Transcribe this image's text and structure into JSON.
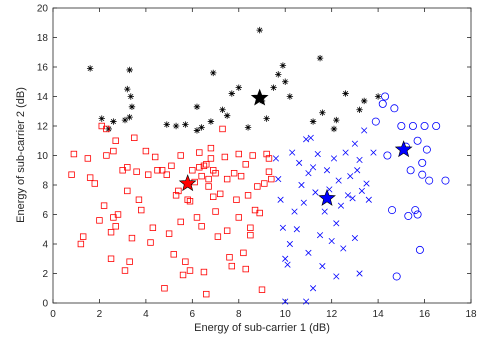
{
  "chart_data": {
    "type": "scatter",
    "title": "",
    "xlabel": "Energy of sub-carrier 1 (dB)",
    "ylabel": "Energy of sub-carrier 2 (dB)",
    "xlim": [
      0,
      18
    ],
    "ylim": [
      0,
      20
    ],
    "xticks": [
      0,
      2,
      4,
      6,
      8,
      10,
      12,
      14,
      16,
      18
    ],
    "yticks": [
      0,
      2,
      4,
      6,
      8,
      10,
      12,
      14,
      16,
      18,
      20
    ],
    "grid": false,
    "legend": "none",
    "series": [
      {
        "marker": "asterisk",
        "color": "#000000",
        "points": [
          [
            1.6,
            15.9
          ],
          [
            2.1,
            12.5
          ],
          [
            2.4,
            11.8
          ],
          [
            2.6,
            12.3
          ],
          [
            3.1,
            12.4
          ],
          [
            3.2,
            14.5
          ],
          [
            3.3,
            15.8
          ],
          [
            3.35,
            14.0
          ],
          [
            3.4,
            13.3
          ],
          [
            3.3,
            12.6
          ],
          [
            4.9,
            12.1
          ],
          [
            5.3,
            12.0
          ],
          [
            5.7,
            12.1
          ],
          [
            6.2,
            11.7
          ],
          [
            6.4,
            11.9
          ],
          [
            6.8,
            12.3
          ],
          [
            6.9,
            15.6
          ],
          [
            6.2,
            13.3
          ],
          [
            7.3,
            13.1
          ],
          [
            7.5,
            12.7
          ],
          [
            7.7,
            14.2
          ],
          [
            8.0,
            14.6
          ],
          [
            8.4,
            11.9
          ],
          [
            8.9,
            18.5
          ],
          [
            9.0,
            13.7
          ],
          [
            9.2,
            12.5
          ],
          [
            9.5,
            14.6
          ],
          [
            9.7,
            15.5
          ],
          [
            9.9,
            16.1
          ],
          [
            10.0,
            15.0
          ],
          [
            10.2,
            14.0
          ],
          [
            11.5,
            16.6
          ],
          [
            11.6,
            12.9
          ],
          [
            12.1,
            11.8
          ],
          [
            12.2,
            12.4
          ],
          [
            12.6,
            14.2
          ],
          [
            13.2,
            13.1
          ],
          [
            13.4,
            13.7
          ],
          [
            14.0,
            14.0
          ],
          [
            11.2,
            12.3
          ]
        ]
      },
      {
        "marker": "square",
        "color": "#ff0000",
        "points": [
          [
            0.8,
            8.7
          ],
          [
            0.9,
            10.1
          ],
          [
            1.2,
            4.0
          ],
          [
            1.3,
            4.5
          ],
          [
            1.5,
            9.8
          ],
          [
            1.6,
            8.5
          ],
          [
            1.8,
            8.1
          ],
          [
            2.0,
            5.6
          ],
          [
            2.1,
            12.0
          ],
          [
            2.2,
            6.6
          ],
          [
            2.3,
            11.8
          ],
          [
            2.3,
            10.0
          ],
          [
            2.5,
            4.8
          ],
          [
            2.5,
            3.0
          ],
          [
            2.6,
            10.3
          ],
          [
            2.7,
            5.2
          ],
          [
            2.7,
            11.0
          ],
          [
            2.8,
            6.0
          ],
          [
            3.0,
            9.0
          ],
          [
            3.1,
            2.2
          ],
          [
            3.2,
            7.6
          ],
          [
            3.2,
            9.2
          ],
          [
            3.3,
            2.8
          ],
          [
            3.5,
            11.2
          ],
          [
            3.6,
            8.9
          ],
          [
            3.7,
            7.0
          ],
          [
            3.8,
            6.3
          ],
          [
            4.0,
            10.3
          ],
          [
            4.1,
            8.7
          ],
          [
            4.3,
            5.1
          ],
          [
            4.4,
            9.9
          ],
          [
            4.5,
            9.0
          ],
          [
            4.7,
            9.0
          ],
          [
            4.8,
            1.0
          ],
          [
            4.9,
            8.7
          ],
          [
            5.0,
            4.7
          ],
          [
            5.1,
            9.3
          ],
          [
            5.2,
            3.3
          ],
          [
            5.3,
            7.3
          ],
          [
            5.4,
            7.6
          ],
          [
            5.5,
            10.0
          ],
          [
            5.6,
            1.9
          ],
          [
            5.7,
            2.8
          ],
          [
            5.8,
            7.0
          ],
          [
            5.9,
            6.9
          ],
          [
            6.0,
            9.0
          ],
          [
            6.1,
            8.2
          ],
          [
            6.2,
            5.8
          ],
          [
            6.3,
            9.2
          ],
          [
            6.4,
            5.2
          ],
          [
            6.4,
            8.6
          ],
          [
            6.5,
            9.3
          ],
          [
            6.5,
            2.1
          ],
          [
            6.6,
            0.6
          ],
          [
            6.7,
            7.9
          ],
          [
            6.7,
            8.4
          ],
          [
            6.8,
            9.8
          ],
          [
            6.8,
            10.5
          ],
          [
            6.9,
            7.2
          ],
          [
            7.0,
            6.2
          ],
          [
            7.0,
            8.8
          ],
          [
            7.1,
            4.5
          ],
          [
            7.2,
            7.4
          ],
          [
            7.3,
            11.8
          ],
          [
            7.4,
            9.9
          ],
          [
            7.5,
            8.4
          ],
          [
            7.5,
            4.9
          ],
          [
            7.6,
            3.1
          ],
          [
            7.7,
            2.5
          ],
          [
            7.8,
            8.8
          ],
          [
            7.9,
            7.0
          ],
          [
            8.0,
            5.8
          ],
          [
            8.0,
            10.1
          ],
          [
            8.1,
            8.6
          ],
          [
            8.2,
            3.4
          ],
          [
            8.3,
            2.3
          ],
          [
            8.3,
            9.4
          ],
          [
            8.4,
            7.3
          ],
          [
            8.5,
            5.1
          ],
          [
            8.5,
            4.6
          ],
          [
            8.6,
            10.0
          ],
          [
            8.7,
            6.3
          ],
          [
            8.8,
            7.9
          ],
          [
            8.9,
            6.1
          ],
          [
            9.0,
            0.9
          ],
          [
            9.1,
            8.1
          ],
          [
            9.2,
            10.1
          ],
          [
            9.3,
            8.9
          ],
          [
            9.4,
            8.4
          ],
          [
            9.3,
            9.8
          ],
          [
            6.6,
            9.4
          ],
          [
            6.9,
            9.0
          ],
          [
            6.3,
            10.2
          ],
          [
            5.5,
            5.5
          ],
          [
            5.9,
            2.2
          ],
          [
            4.2,
            4.1
          ],
          [
            3.4,
            4.4
          ],
          [
            2.6,
            5.8
          ]
        ]
      },
      {
        "marker": "x",
        "color": "#0000ff",
        "points": [
          [
            9.6,
            9.8
          ],
          [
            9.7,
            8.4
          ],
          [
            9.8,
            7.0
          ],
          [
            9.9,
            5.1
          ],
          [
            10.0,
            3.0
          ],
          [
            10.0,
            0.1
          ],
          [
            10.1,
            2.6
          ],
          [
            10.2,
            4.0
          ],
          [
            10.3,
            10.2
          ],
          [
            10.4,
            6.2
          ],
          [
            10.5,
            5.0
          ],
          [
            10.6,
            9.5
          ],
          [
            10.7,
            8.0
          ],
          [
            10.8,
            6.8
          ],
          [
            10.9,
            0.1
          ],
          [
            11.0,
            3.4
          ],
          [
            11.0,
            8.8
          ],
          [
            11.1,
            11.2
          ],
          [
            11.2,
            9.2
          ],
          [
            11.3,
            7.5
          ],
          [
            11.4,
            10.1
          ],
          [
            11.5,
            4.6
          ],
          [
            11.6,
            2.5
          ],
          [
            11.7,
            6.2
          ],
          [
            11.8,
            9.0
          ],
          [
            11.9,
            7.7
          ],
          [
            12.0,
            4.2
          ],
          [
            12.1,
            9.8
          ],
          [
            12.2,
            5.4
          ],
          [
            12.3,
            8.3
          ],
          [
            12.4,
            6.6
          ],
          [
            12.5,
            3.7
          ],
          [
            12.6,
            10.2
          ],
          [
            12.7,
            7.3
          ],
          [
            12.8,
            8.6
          ],
          [
            12.9,
            7.1
          ],
          [
            13.0,
            10.8
          ],
          [
            13.0,
            4.4
          ],
          [
            13.1,
            9.0
          ],
          [
            13.2,
            2.0
          ],
          [
            13.2,
            9.7
          ],
          [
            13.3,
            7.6
          ],
          [
            13.4,
            11.7
          ],
          [
            13.5,
            8.1
          ],
          [
            13.6,
            7.0
          ],
          [
            13.8,
            10.2
          ],
          [
            12.2,
            1.8
          ],
          [
            11.2,
            1.0
          ],
          [
            10.9,
            11.1
          ]
        ]
      },
      {
        "marker": "circle",
        "color": "#0000ff",
        "points": [
          [
            13.9,
            12.3
          ],
          [
            14.2,
            13.5
          ],
          [
            14.3,
            14.0
          ],
          [
            14.4,
            10.0
          ],
          [
            14.6,
            6.3
          ],
          [
            14.7,
            13.2
          ],
          [
            14.8,
            1.8
          ],
          [
            15.0,
            12.0
          ],
          [
            15.2,
            10.6
          ],
          [
            15.3,
            5.9
          ],
          [
            15.4,
            9.0
          ],
          [
            15.5,
            12.0
          ],
          [
            15.6,
            6.3
          ],
          [
            15.7,
            11.0
          ],
          [
            15.8,
            3.6
          ],
          [
            15.9,
            9.5
          ],
          [
            15.9,
            8.7
          ],
          [
            16.0,
            12.0
          ],
          [
            16.1,
            10.4
          ],
          [
            16.2,
            8.3
          ],
          [
            16.5,
            12.0
          ],
          [
            16.9,
            8.3
          ],
          [
            15.7,
            6.0
          ]
        ]
      },
      {
        "marker": "star",
        "color": "#000000",
        "points": [
          [
            8.9,
            13.9
          ]
        ]
      },
      {
        "marker": "star",
        "color": "#ff0000",
        "points": [
          [
            5.8,
            8.1
          ]
        ]
      },
      {
        "marker": "star",
        "color": "#0000ff",
        "points": [
          [
            11.8,
            7.1
          ]
        ]
      },
      {
        "marker": "star",
        "color": "#0000ff",
        "points": [
          [
            15.1,
            10.4
          ]
        ]
      }
    ]
  }
}
